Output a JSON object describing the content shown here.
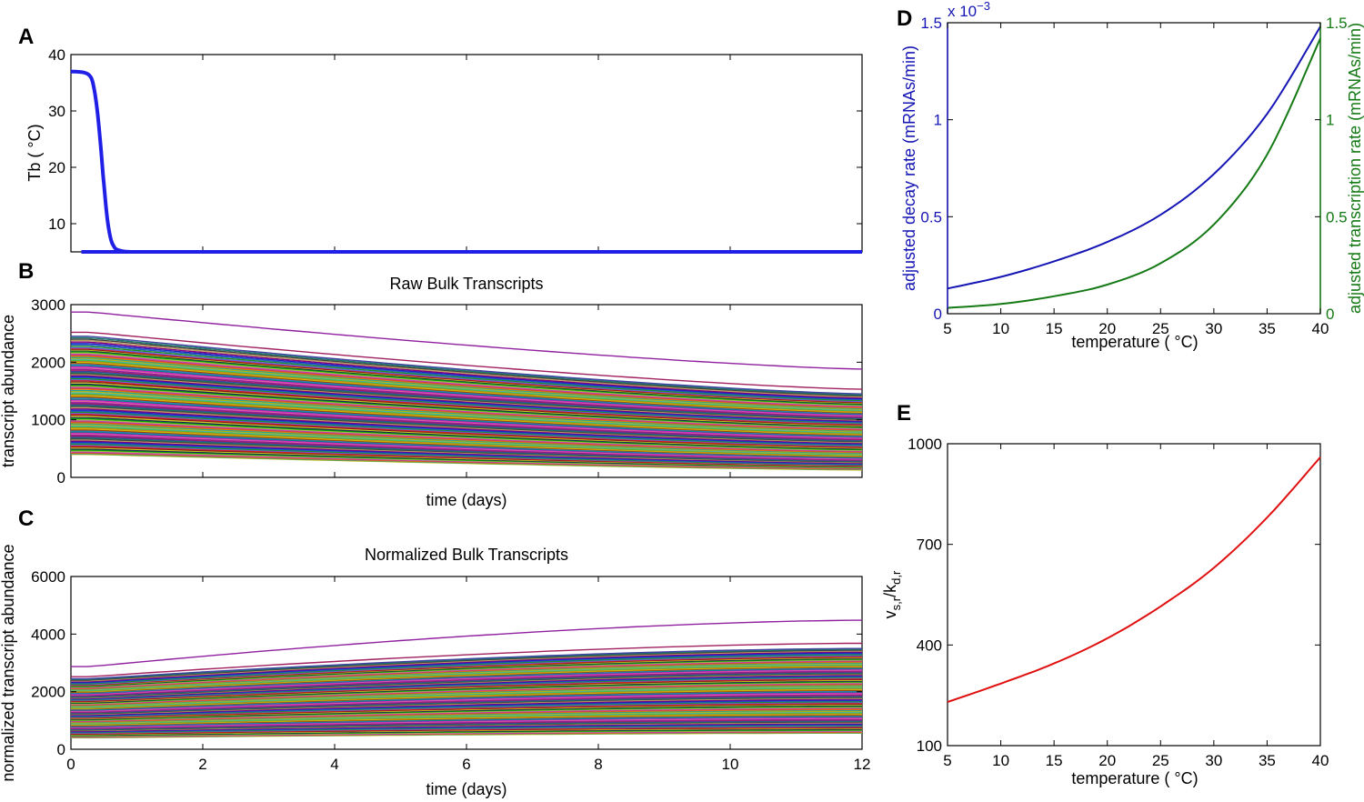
{
  "figure": {
    "panels": {
      "A": "A",
      "B": "B",
      "C": "C",
      "D": "D",
      "E": "E"
    }
  },
  "chart_data": [
    {
      "id": "A",
      "type": "line",
      "title": "",
      "xlabel": "",
      "ylabel": "Tb ( °C)",
      "xlim": [
        0,
        12
      ],
      "ylim": [
        5,
        40
      ],
      "yticks": [
        10,
        20,
        30,
        40
      ],
      "ytick_labels": [
        "10",
        "20",
        "30",
        "40"
      ],
      "xticks": [
        0,
        2,
        4,
        6,
        8,
        10,
        12
      ],
      "color": "#1f1fe6",
      "series": [
        {
          "name": "Tb",
          "x": [
            0,
            0.2,
            0.3,
            0.35,
            0.4,
            0.45,
            0.5,
            0.55,
            0.6,
            0.65,
            0.7,
            0.8,
            0.9,
            1.0,
            12
          ],
          "y": [
            37,
            36.8,
            36,
            34,
            30,
            24,
            17,
            11,
            7.5,
            6,
            5.4,
            5.1,
            5.0,
            5.0,
            5.0
          ]
        }
      ]
    },
    {
      "id": "B",
      "type": "line",
      "title": "Raw Bulk Transcripts",
      "xlabel": "time (days)",
      "ylabel": "transcript abundance",
      "xlim": [
        0,
        12
      ],
      "ylim": [
        0,
        3000
      ],
      "yticks": [
        0,
        1000,
        2000,
        3000
      ],
      "ytick_labels": [
        "0",
        "1000",
        "2000",
        "3000"
      ],
      "xticks": [
        0,
        2,
        4,
        6,
        8,
        10,
        12
      ],
      "note": "Many transcript curves (one per gene); start values listed, each decays toward its end value over 12 days",
      "series_start": [
        2870,
        2520,
        2450,
        2350,
        2250,
        2200,
        2120,
        2050,
        1980,
        1900,
        1820,
        1750,
        1680,
        1600,
        1530,
        1450,
        1380,
        1300,
        1230,
        1150,
        1080,
        1000,
        930,
        860,
        790,
        720,
        650,
        580,
        510,
        440,
        400
      ],
      "series_end": [
        1880,
        1530,
        1450,
        1380,
        1320,
        1280,
        1220,
        1170,
        1120,
        1070,
        1020,
        970,
        920,
        870,
        820,
        770,
        720,
        670,
        620,
        570,
        520,
        470,
        420,
        380,
        340,
        300,
        260,
        220,
        190,
        160,
        130
      ]
    },
    {
      "id": "C",
      "type": "line",
      "title": "Normalized Bulk Transcripts",
      "xlabel": "time (days)",
      "ylabel": "normalized transcript abundance",
      "xlim": [
        0,
        12
      ],
      "ylim": [
        0,
        6000
      ],
      "yticks": [
        0,
        2000,
        4000,
        6000
      ],
      "ytick_labels": [
        "0",
        "2000",
        "4000",
        "6000"
      ],
      "xticks": [
        0,
        2,
        4,
        6,
        8,
        10,
        12
      ],
      "xtick_labels": [
        "0",
        "2",
        "4",
        "6",
        "8",
        "10",
        "12"
      ],
      "note": "Normalized curves, one per gene; start and end values",
      "series_start": [
        2870,
        2520,
        2450,
        2350,
        2250,
        2200,
        2120,
        2050,
        1980,
        1900,
        1820,
        1750,
        1680,
        1600,
        1530,
        1450,
        1380,
        1300,
        1230,
        1150,
        1080,
        1000,
        930,
        860,
        790,
        720,
        650,
        580,
        510,
        440,
        400
      ],
      "series_end": [
        4480,
        3680,
        3500,
        3380,
        3250,
        3150,
        3050,
        2950,
        2850,
        2750,
        2650,
        2550,
        2450,
        2340,
        2240,
        2130,
        2020,
        1900,
        1800,
        1680,
        1570,
        1460,
        1350,
        1240,
        1130,
        1020,
        920,
        820,
        720,
        620,
        560
      ]
    },
    {
      "id": "D",
      "type": "line",
      "title": "",
      "xlabel": "temperature ( °C)",
      "ylabel": "adjusted decay rate (mRNAs/min)",
      "ylabel_right": "adjusted transcription rate (mRNAs/min)",
      "xlim": [
        5,
        40
      ],
      "ylim": [
        0,
        1.5
      ],
      "xticks": [
        5,
        10,
        15,
        20,
        25,
        30,
        35,
        40
      ],
      "xtick_labels": [
        "5",
        "10",
        "15",
        "20",
        "25",
        "30",
        "35",
        "40"
      ],
      "yticks": [
        0,
        0.5,
        1,
        1.5
      ],
      "ytick_labels": [
        "0",
        "0.5",
        "1",
        "1.5"
      ],
      "ytick_labels_right": [
        "0",
        "0.5",
        "1",
        "1.5"
      ],
      "exponent_label": "x 10",
      "exponent_power": "−3",
      "color_left": "#1515b5",
      "color_right": "#157a15",
      "series": [
        {
          "name": "adjusted decay rate (x1e-3)",
          "axis": "left",
          "x": [
            5,
            10,
            15,
            20,
            25,
            30,
            35,
            40
          ],
          "y": [
            0.13,
            0.19,
            0.27,
            0.37,
            0.51,
            0.72,
            1.03,
            1.48
          ]
        },
        {
          "name": "adjusted transcription rate",
          "axis": "right",
          "x": [
            5,
            10,
            15,
            20,
            25,
            30,
            35,
            40
          ],
          "y": [
            0.03,
            0.05,
            0.09,
            0.15,
            0.26,
            0.46,
            0.82,
            1.42
          ]
        }
      ]
    },
    {
      "id": "E",
      "type": "line",
      "title": "",
      "xlabel": "temperature ( °C)",
      "ylabel_main": "v",
      "ylabel_sub1": "s,r",
      "ylabel_mid": "/k",
      "ylabel_sub2": "d,r",
      "xlim": [
        5,
        40
      ],
      "ylim": [
        100,
        1000
      ],
      "xticks": [
        5,
        10,
        15,
        20,
        25,
        30,
        35,
        40
      ],
      "xtick_labels": [
        "5",
        "10",
        "15",
        "20",
        "25",
        "30",
        "35",
        "40"
      ],
      "yticks": [
        100,
        400,
        700,
        1000
      ],
      "ytick_labels": [
        "100",
        "400",
        "700",
        "1000"
      ],
      "color": "#e01010",
      "series": [
        {
          "name": "vs,r/kd,r",
          "x": [
            5,
            10,
            15,
            20,
            25,
            30,
            35,
            40
          ],
          "y": [
            230,
            285,
            345,
            420,
            515,
            630,
            780,
            960
          ]
        }
      ]
    }
  ]
}
